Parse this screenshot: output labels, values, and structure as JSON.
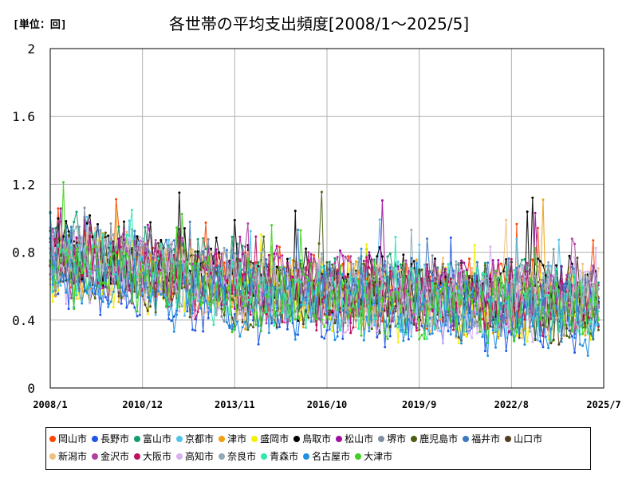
{
  "unit_label": "[単位：回]",
  "chart_data": {
    "type": "line",
    "title": "各世帯の平均支出頻度[2008/1～2025/5]",
    "xlabel": "",
    "ylabel": "",
    "ylim": [
      0,
      2
    ],
    "yticks": [
      "0",
      "0.4",
      "0.8",
      "1.2",
      "1.6",
      "2"
    ],
    "x_start": "2008/1",
    "x_end": "2025/7",
    "xticks": [
      "2008/1",
      "2010/12",
      "2013/11",
      "2016/10",
      "2019/9",
      "2022/8",
      "2025/7"
    ],
    "grid": true,
    "legend_position": "bottom",
    "series": [
      {
        "name": "岡山市",
        "color": "#ff4500",
        "trend": [
          0.78,
          0.72,
          0.62,
          0.58,
          0.56,
          0.55,
          0.54
        ]
      },
      {
        "name": "長野市",
        "color": "#1e56e6",
        "trend": [
          0.66,
          0.58,
          0.48,
          0.44,
          0.42,
          0.41,
          0.4
        ]
      },
      {
        "name": "富山市",
        "color": "#10a070",
        "trend": [
          0.86,
          0.8,
          0.66,
          0.62,
          0.6,
          0.58,
          0.56
        ]
      },
      {
        "name": "京都市",
        "color": "#52c2ee",
        "trend": [
          0.74,
          0.68,
          0.58,
          0.54,
          0.52,
          0.5,
          0.49
        ]
      },
      {
        "name": "津市",
        "color": "#f0a010",
        "trend": [
          0.76,
          0.7,
          0.58,
          0.55,
          0.53,
          0.51,
          0.5
        ]
      },
      {
        "name": "盛岡市",
        "color": "#f4f000",
        "trend": [
          0.72,
          0.66,
          0.56,
          0.52,
          0.5,
          0.48,
          0.47
        ]
      },
      {
        "name": "鳥取市",
        "color": "#000000",
        "trend": [
          0.84,
          0.78,
          0.66,
          0.62,
          0.6,
          0.58,
          0.56
        ]
      },
      {
        "name": "松山市",
        "color": "#a010a0",
        "trend": [
          0.8,
          0.74,
          0.62,
          0.6,
          0.58,
          0.56,
          0.55
        ]
      },
      {
        "name": "堺市",
        "color": "#8090a0",
        "trend": [
          0.78,
          0.72,
          0.62,
          0.58,
          0.56,
          0.54,
          0.52
        ]
      },
      {
        "name": "鹿児島市",
        "color": "#4a6010",
        "trend": [
          0.76,
          0.7,
          0.58,
          0.54,
          0.52,
          0.5,
          0.48
        ]
      },
      {
        "name": "福井市",
        "color": "#3e78c0",
        "trend": [
          0.8,
          0.74,
          0.62,
          0.58,
          0.56,
          0.54,
          0.52
        ]
      },
      {
        "name": "山口市",
        "color": "#504020",
        "trend": [
          0.74,
          0.68,
          0.56,
          0.52,
          0.5,
          0.48,
          0.46
        ]
      },
      {
        "name": "新潟市",
        "color": "#f0c080",
        "trend": [
          0.78,
          0.72,
          0.6,
          0.56,
          0.54,
          0.52,
          0.5
        ]
      },
      {
        "name": "金沢市",
        "color": "#b040a0",
        "trend": [
          0.78,
          0.72,
          0.6,
          0.57,
          0.55,
          0.53,
          0.51
        ]
      },
      {
        "name": "大阪市",
        "color": "#c01060",
        "trend": [
          0.76,
          0.7,
          0.58,
          0.54,
          0.52,
          0.5,
          0.48
        ]
      },
      {
        "name": "高知市",
        "color": "#d8b0f0",
        "trend": [
          0.72,
          0.66,
          0.56,
          0.52,
          0.5,
          0.5,
          0.49
        ]
      },
      {
        "name": "奈良市",
        "color": "#90a8b8",
        "trend": [
          0.8,
          0.74,
          0.62,
          0.58,
          0.56,
          0.54,
          0.52
        ]
      },
      {
        "name": "青森市",
        "color": "#30e8b0",
        "trend": [
          0.74,
          0.68,
          0.56,
          0.52,
          0.5,
          0.48,
          0.46
        ]
      },
      {
        "name": "名古屋市",
        "color": "#2090e0",
        "trend": [
          0.66,
          0.6,
          0.5,
          0.46,
          0.44,
          0.42,
          0.41
        ]
      },
      {
        "name": "大津市",
        "color": "#40d020",
        "trend": [
          0.72,
          0.66,
          0.56,
          0.52,
          0.5,
          0.48,
          0.46
        ]
      }
    ]
  }
}
